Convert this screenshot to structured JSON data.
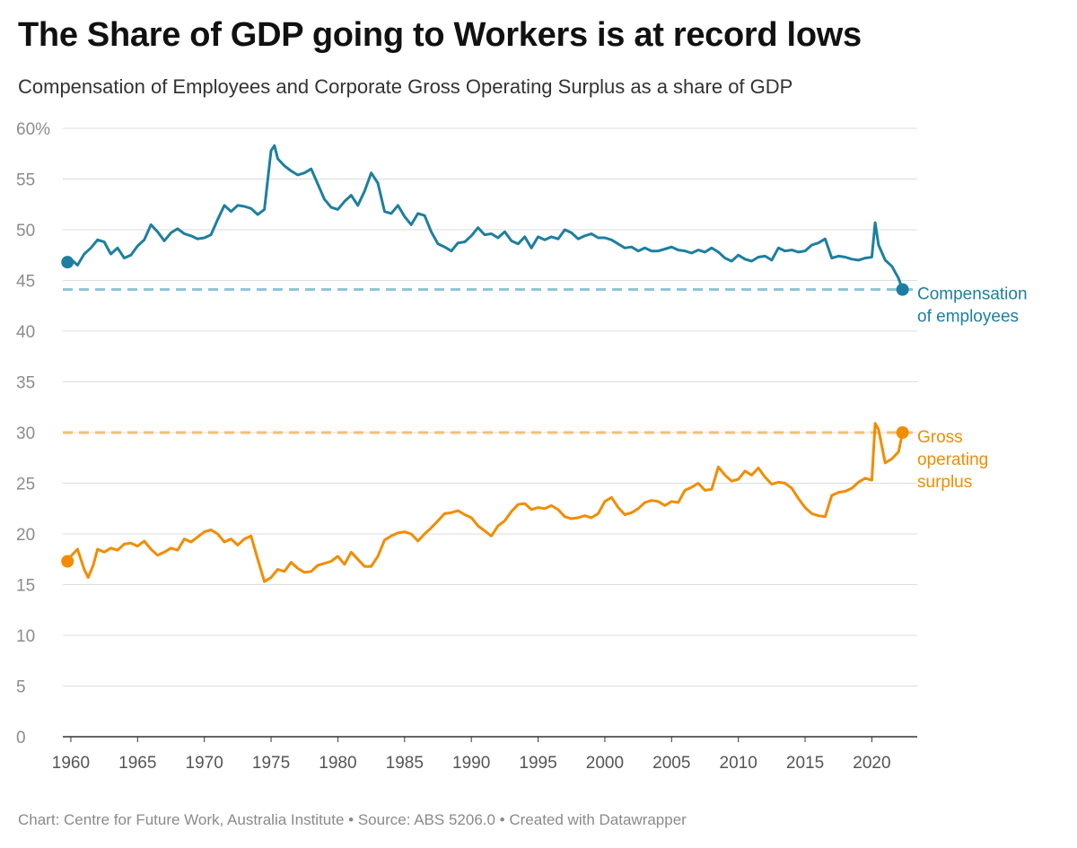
{
  "title": "The Share of GDP going to Workers is at record lows",
  "subtitle": "Compensation of Employees and Corporate Gross Operating Surplus as a share of GDP",
  "footer": "Chart: Centre for Future Work, Australia Institute • Source: ABS 5206.0 • Created with Datawrapper",
  "chart_data": {
    "type": "line",
    "title": "The Share of GDP going to Workers is at record lows",
    "subtitle": "Compensation of Employees and Corporate Gross Operating Surplus as a share of GDP",
    "xlabel": "",
    "ylabel": "",
    "xlim": [
      1959.4,
      2023.4
    ],
    "ylim": [
      0,
      60
    ],
    "x_ticks": [
      "1960",
      "1965",
      "1970",
      "1975",
      "1980",
      "1985",
      "1990",
      "1995",
      "2000",
      "2005",
      "2010",
      "2015",
      "2020"
    ],
    "y_ticks": [
      "60%",
      "55",
      "50",
      "45",
      "40",
      "35",
      "30",
      "25",
      "20",
      "15",
      "10",
      "5",
      "0"
    ],
    "grid": "horizontal",
    "legend": "inline labels at right end of lines",
    "series": [
      {
        "name": "Compensation of employees",
        "color": "#1d7fa0",
        "reference_line": 44.1,
        "reference_color": "#8cc4d6",
        "x": [
          1959.75,
          1960.0,
          1960.5,
          1961.0,
          1961.5,
          1962.0,
          1962.5,
          1963.0,
          1963.5,
          1964.0,
          1964.5,
          1965.0,
          1965.5,
          1966.0,
          1966.5,
          1967.0,
          1967.5,
          1968.0,
          1968.5,
          1969.0,
          1969.5,
          1970.0,
          1970.5,
          1971.0,
          1971.5,
          1972.0,
          1972.5,
          1973.0,
          1973.5,
          1974.0,
          1974.5,
          1975.0,
          1975.25,
          1975.5,
          1976.0,
          1976.5,
          1977.0,
          1977.5,
          1978.0,
          1978.5,
          1979.0,
          1979.5,
          1980.0,
          1980.5,
          1981.0,
          1981.5,
          1982.0,
          1982.5,
          1983.0,
          1983.5,
          1984.0,
          1984.5,
          1985.0,
          1985.5,
          1986.0,
          1986.5,
          1987.0,
          1987.5,
          1988.0,
          1988.5,
          1989.0,
          1989.5,
          1990.0,
          1990.5,
          1991.0,
          1991.5,
          1992.0,
          1992.5,
          1993.0,
          1993.5,
          1994.0,
          1994.5,
          1995.0,
          1995.5,
          1996.0,
          1996.5,
          1997.0,
          1997.5,
          1998.0,
          1998.5,
          1999.0,
          1999.5,
          2000.0,
          2000.5,
          2001.0,
          2001.5,
          2002.0,
          2002.5,
          2003.0,
          2003.5,
          2004.0,
          2004.5,
          2005.0,
          2005.5,
          2006.0,
          2006.5,
          2007.0,
          2007.5,
          2008.0,
          2008.5,
          2009.0,
          2009.5,
          2010.0,
          2010.5,
          2011.0,
          2011.5,
          2012.0,
          2012.5,
          2013.0,
          2013.5,
          2014.0,
          2014.5,
          2015.0,
          2015.5,
          2016.0,
          2016.5,
          2017.0,
          2017.5,
          2018.0,
          2018.5,
          2019.0,
          2019.5,
          2020.0,
          2020.25,
          2020.5,
          2021.0,
          2021.5,
          2022.0,
          2022.3
        ],
        "values": [
          46.8,
          47.1,
          46.5,
          47.6,
          48.2,
          49.0,
          48.8,
          47.6,
          48.2,
          47.2,
          47.5,
          48.4,
          49.0,
          50.5,
          49.8,
          48.9,
          49.7,
          50.1,
          49.6,
          49.4,
          49.1,
          49.2,
          49.5,
          51.0,
          52.4,
          51.8,
          52.4,
          52.3,
          52.1,
          51.5,
          52.0,
          57.8,
          58.3,
          57.0,
          56.3,
          55.8,
          55.4,
          55.6,
          56.0,
          54.5,
          53.0,
          52.2,
          52.0,
          52.8,
          53.4,
          52.4,
          53.8,
          55.6,
          54.6,
          51.8,
          51.6,
          52.4,
          51.3,
          50.5,
          51.6,
          51.4,
          49.8,
          48.6,
          48.3,
          47.9,
          48.7,
          48.8,
          49.4,
          50.2,
          49.5,
          49.6,
          49.2,
          49.8,
          48.9,
          48.6,
          49.3,
          48.2,
          49.3,
          49.0,
          49.3,
          49.1,
          50.0,
          49.7,
          49.1,
          49.4,
          49.6,
          49.2,
          49.2,
          49.0,
          48.6,
          48.2,
          48.3,
          47.9,
          48.2,
          47.9,
          47.9,
          48.1,
          48.3,
          48.0,
          47.9,
          47.7,
          48.0,
          47.8,
          48.2,
          47.8,
          47.2,
          46.9,
          47.5,
          47.1,
          46.9,
          47.3,
          47.4,
          47.0,
          48.2,
          47.9,
          48.0,
          47.8,
          47.9,
          48.5,
          48.7,
          49.1,
          47.2,
          47.4,
          47.3,
          47.1,
          47.0,
          47.2,
          47.3,
          50.7,
          48.5,
          47.0,
          46.4,
          45.2,
          44.1
        ]
      },
      {
        "name": "Gross operating surplus",
        "color": "#f28c00",
        "reference_line": 30.0,
        "reference_color": "#f6bf72",
        "x": [
          1959.75,
          1960.0,
          1960.5,
          1961.0,
          1961.3,
          1961.7,
          1962.0,
          1962.5,
          1963.0,
          1963.5,
          1964.0,
          1964.5,
          1965.0,
          1965.5,
          1966.0,
          1966.5,
          1967.0,
          1967.5,
          1968.0,
          1968.5,
          1969.0,
          1969.5,
          1970.0,
          1970.5,
          1971.0,
          1971.5,
          1972.0,
          1972.5,
          1973.0,
          1973.5,
          1974.0,
          1974.5,
          1975.0,
          1975.5,
          1976.0,
          1976.5,
          1977.0,
          1977.5,
          1978.0,
          1978.5,
          1979.0,
          1979.5,
          1980.0,
          1980.5,
          1981.0,
          1981.5,
          1982.0,
          1982.5,
          1983.0,
          1983.5,
          1984.0,
          1984.5,
          1985.0,
          1985.5,
          1986.0,
          1986.5,
          1987.0,
          1987.5,
          1988.0,
          1988.5,
          1989.0,
          1989.5,
          1990.0,
          1990.5,
          1991.0,
          1991.5,
          1992.0,
          1992.5,
          1993.0,
          1993.5,
          1994.0,
          1994.5,
          1995.0,
          1995.5,
          1996.0,
          1996.5,
          1997.0,
          1997.5,
          1998.0,
          1998.5,
          1999.0,
          1999.5,
          2000.0,
          2000.5,
          2001.0,
          2001.5,
          2002.0,
          2002.5,
          2003.0,
          2003.5,
          2004.0,
          2004.5,
          2005.0,
          2005.5,
          2006.0,
          2006.5,
          2007.0,
          2007.5,
          2008.0,
          2008.5,
          2009.0,
          2009.5,
          2010.0,
          2010.5,
          2011.0,
          2011.5,
          2012.0,
          2012.5,
          2013.0,
          2013.5,
          2014.0,
          2014.5,
          2015.0,
          2015.5,
          2016.0,
          2016.5,
          2017.0,
          2017.5,
          2018.0,
          2018.5,
          2019.0,
          2019.5,
          2020.0,
          2020.25,
          2020.5,
          2021.0,
          2021.5,
          2022.0,
          2022.3
        ],
        "values": [
          17.3,
          17.8,
          18.5,
          16.5,
          15.7,
          17.0,
          18.5,
          18.2,
          18.6,
          18.4,
          19.0,
          19.1,
          18.8,
          19.3,
          18.5,
          17.9,
          18.2,
          18.6,
          18.4,
          19.5,
          19.2,
          19.7,
          20.2,
          20.4,
          20.0,
          19.2,
          19.5,
          18.9,
          19.5,
          19.8,
          17.5,
          15.3,
          15.7,
          16.5,
          16.3,
          17.2,
          16.6,
          16.2,
          16.3,
          16.9,
          17.1,
          17.3,
          17.8,
          17.0,
          18.2,
          17.5,
          16.8,
          16.8,
          17.8,
          19.4,
          19.8,
          20.1,
          20.2,
          20.0,
          19.3,
          20.0,
          20.6,
          21.3,
          22.0,
          22.1,
          22.3,
          21.9,
          21.6,
          20.8,
          20.3,
          19.8,
          20.8,
          21.3,
          22.2,
          22.9,
          23.0,
          22.4,
          22.6,
          22.5,
          22.8,
          22.4,
          21.7,
          21.5,
          21.6,
          21.8,
          21.6,
          22.0,
          23.2,
          23.6,
          22.6,
          21.9,
          22.1,
          22.5,
          23.1,
          23.3,
          23.2,
          22.8,
          23.2,
          23.1,
          24.3,
          24.6,
          25.0,
          24.3,
          24.4,
          26.6,
          25.8,
          25.2,
          25.4,
          26.2,
          25.8,
          26.5,
          25.6,
          24.9,
          25.1,
          25.0,
          24.5,
          23.5,
          22.6,
          22.0,
          21.8,
          21.7,
          23.8,
          24.1,
          24.2,
          24.5,
          25.1,
          25.5,
          25.3,
          30.9,
          30.3,
          27.0,
          27.4,
          28.1,
          30.0
        ]
      }
    ]
  }
}
